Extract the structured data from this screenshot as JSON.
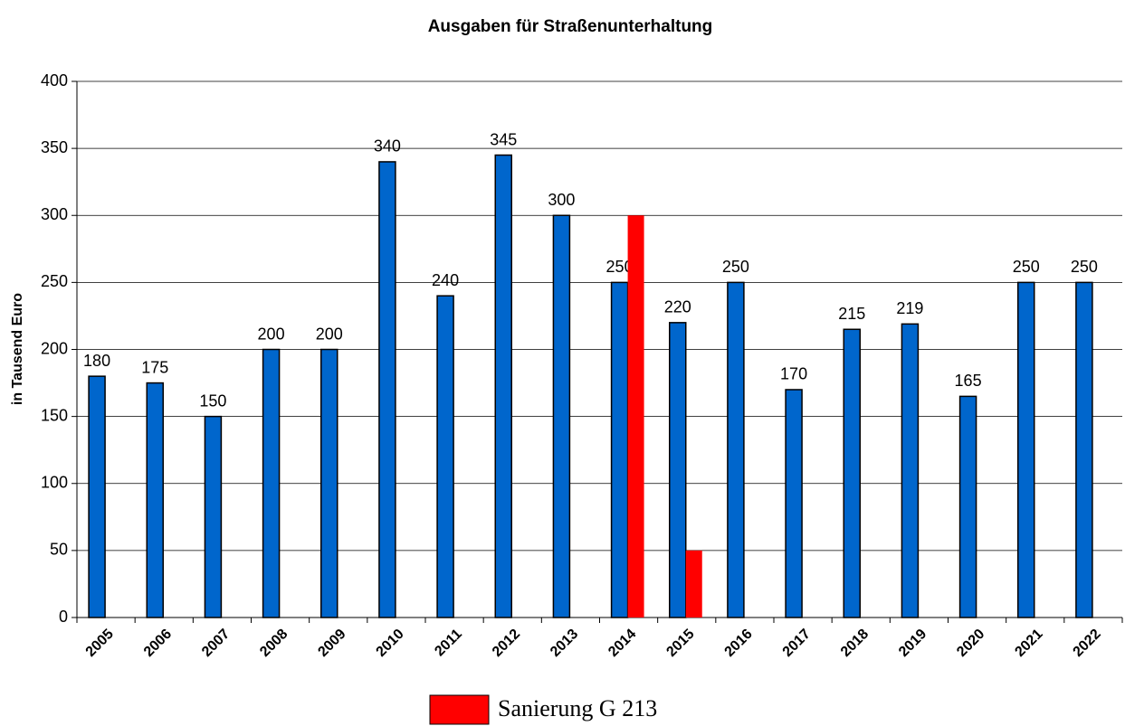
{
  "chart_data": {
    "type": "bar",
    "title": "Ausgaben für Straßenunterhaltung",
    "y_label": "in Tausend Euro",
    "categories": [
      "2005",
      "2006",
      "2007",
      "2008",
      "2009",
      "2010",
      "2011",
      "2012",
      "2013",
      "2014",
      "2015",
      "2016",
      "2017",
      "2018",
      "2019",
      "2020",
      "2021",
      "2022"
    ],
    "series": [
      {
        "color": "#0066cc",
        "values": [
          180,
          175,
          150,
          200,
          200,
          340,
          240,
          345,
          300,
          250,
          220,
          250,
          170,
          215,
          219,
          165,
          250,
          250
        ]
      },
      {
        "name": "Sanierung G 213",
        "color": "#ff0000",
        "values": [
          null,
          null,
          null,
          null,
          null,
          null,
          null,
          null,
          null,
          300,
          50,
          null,
          null,
          null,
          null,
          null,
          null,
          null
        ]
      }
    ],
    "ylim": [
      0,
      400
    ],
    "yticks": [
      0,
      50,
      100,
      150,
      200,
      250,
      300,
      350,
      400
    ],
    "grid": true,
    "legend": "bottom"
  }
}
